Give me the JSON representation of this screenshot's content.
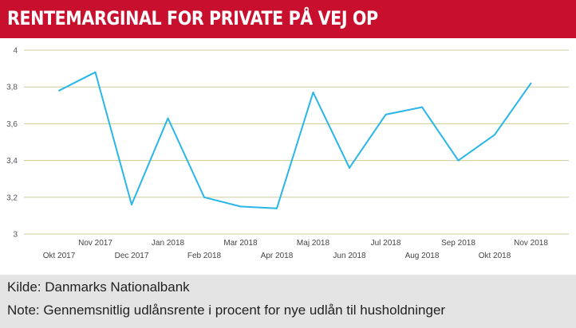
{
  "title": "RENTEMARGINAL FOR PRIVATE PÅ VEJ OP",
  "footer": {
    "source": "Kilde: Danmarks Nationalbank",
    "note": "Note: Gennemsnitlig udlånsrente i procent for nye udlån til husholdninger"
  },
  "colors": {
    "title_bar": "#c8102e",
    "line": "#29b6e8",
    "grid": "#cccc99",
    "footer_bg": "#e4e4e4"
  },
  "chart_data": {
    "type": "line",
    "title": "RENTEMARGINAL FOR PRIVATE PÅ VEJ OP",
    "xlabel": "",
    "ylabel": "",
    "categories": [
      "Okt 2017",
      "Nov 2017",
      "Dec 2017",
      "Jan 2018",
      "Feb 2018",
      "Mar 2018",
      "Apr 2018",
      "Maj 2018",
      "Jun 2018",
      "Jul 2018",
      "Aug 2018",
      "Sep 2018",
      "Okt 2018",
      "Nov 2018"
    ],
    "values": [
      3.78,
      3.88,
      3.16,
      3.63,
      3.2,
      3.15,
      3.14,
      3.77,
      3.36,
      3.65,
      3.69,
      3.4,
      3.54,
      3.82
    ],
    "ylim": [
      3,
      4
    ],
    "yticks": [
      "3",
      "3,2",
      "3,4",
      "3,6",
      "3,8",
      "4"
    ],
    "ytick_values": [
      3,
      3.2,
      3.4,
      3.6,
      3.8,
      4
    ],
    "grid": true,
    "legend": "none"
  }
}
